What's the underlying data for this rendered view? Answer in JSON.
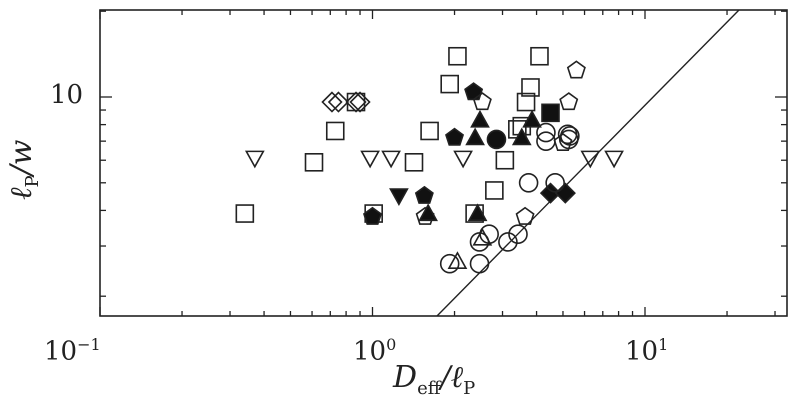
{
  "chart_data": {
    "type": "scatter",
    "title": "",
    "xlabel": "D_eff / ℓ_P",
    "ylabel": "ℓ_P / w",
    "xscale": "log",
    "yscale": "log",
    "xlim": [
      0.1,
      32
    ],
    "ylim": [
      1.7,
      20
    ],
    "grid": false,
    "legend": null,
    "x_ticks": [
      {
        "value": 0.1,
        "label_base": "10",
        "label_exp": "−1"
      },
      {
        "value": 1,
        "label_base": "10",
        "label_exp": "0"
      },
      {
        "value": 10,
        "label_base": "10",
        "label_exp": "1"
      }
    ],
    "y_ticks": [
      {
        "value": 10,
        "label": "10"
      }
    ],
    "fit_line": {
      "from": [
        1.75,
        1.7
      ],
      "to": [
        20,
        20
      ],
      "description": "power-law line with slope ~1 on log-log axes"
    },
    "series": [
      {
        "name": "open-square",
        "marker": "square",
        "filled": false,
        "points": [
          [
            0.34,
            3.9
          ],
          [
            0.61,
            5.9
          ],
          [
            0.73,
            7.6
          ],
          [
            1.01,
            3.9
          ],
          [
            1.42,
            5.9
          ],
          [
            1.62,
            7.6
          ],
          [
            1.92,
            11.1
          ],
          [
            2.05,
            13.9
          ],
          [
            2.8,
            4.7
          ],
          [
            2.37,
            3.9
          ],
          [
            3.06,
            6.0
          ],
          [
            3.4,
            7.7
          ],
          [
            3.53,
            7.9
          ],
          [
            3.66,
            9.6
          ],
          [
            3.8,
            10.8
          ],
          [
            4.1,
            13.9
          ],
          [
            0.87,
            9.6
          ]
        ]
      },
      {
        "name": "open-diamond",
        "marker": "diamond",
        "filled": false,
        "points": [
          [
            0.71,
            9.6
          ],
          [
            0.75,
            9.6
          ],
          [
            0.87,
            9.6
          ],
          [
            0.9,
            9.6
          ]
        ]
      },
      {
        "name": "open-down-triangle",
        "marker": "triangle-down",
        "filled": false,
        "points": [
          [
            0.37,
            6.1
          ],
          [
            0.98,
            6.1
          ],
          [
            1.17,
            6.1
          ],
          [
            2.15,
            6.1
          ],
          [
            6.3,
            6.1
          ],
          [
            7.7,
            6.1
          ]
        ]
      },
      {
        "name": "filled-down-triangle",
        "marker": "triangle-down",
        "filled": true,
        "points": [
          [
            1.25,
            4.5
          ]
        ]
      },
      {
        "name": "filled-pentagon",
        "marker": "pentagon",
        "filled": true,
        "points": [
          [
            1.0,
            3.8
          ],
          [
            1.55,
            4.5
          ],
          [
            2.0,
            7.2
          ],
          [
            2.35,
            10.4
          ]
        ]
      },
      {
        "name": "open-pentagon",
        "marker": "pentagon",
        "filled": false,
        "points": [
          [
            1.56,
            3.8
          ],
          [
            2.53,
            9.6
          ],
          [
            3.63,
            3.8
          ],
          [
            5.25,
            9.6
          ],
          [
            5.6,
            12.4
          ],
          [
            5.0,
            6.9
          ]
        ]
      },
      {
        "name": "filled-triangle",
        "marker": "triangle-up",
        "filled": true,
        "points": [
          [
            1.6,
            3.9
          ],
          [
            2.48,
            8.3
          ],
          [
            2.38,
            7.2
          ],
          [
            3.53,
            7.2
          ],
          [
            3.85,
            8.3
          ],
          [
            2.43,
            3.9
          ]
        ]
      },
      {
        "name": "filled-circle",
        "marker": "circle",
        "filled": true,
        "points": [
          [
            2.85,
            7.1
          ]
        ]
      },
      {
        "name": "filled-square",
        "marker": "square",
        "filled": true,
        "points": [
          [
            4.5,
            8.8
          ]
        ]
      },
      {
        "name": "filled-diamond",
        "marker": "diamond",
        "filled": true,
        "points": [
          [
            4.5,
            4.6
          ],
          [
            5.1,
            4.6
          ]
        ]
      },
      {
        "name": "open-circle",
        "marker": "circle",
        "filled": false,
        "points": [
          [
            1.92,
            2.6
          ],
          [
            2.47,
            2.6
          ],
          [
            2.47,
            3.1
          ],
          [
            2.68,
            3.3
          ],
          [
            3.14,
            3.1
          ],
          [
            3.42,
            3.3
          ],
          [
            3.74,
            5.0
          ],
          [
            4.68,
            5.0
          ],
          [
            4.33,
            7.5
          ],
          [
            5.2,
            7.4
          ],
          [
            5.25,
            7.1
          ],
          [
            5.3,
            7.3
          ],
          [
            4.33,
            7.0
          ]
        ]
      },
      {
        "name": "open-triangle",
        "marker": "triangle-up",
        "filled": false,
        "points": [
          [
            2.05,
            2.65
          ],
          [
            2.53,
            3.2
          ]
        ]
      }
    ]
  }
}
